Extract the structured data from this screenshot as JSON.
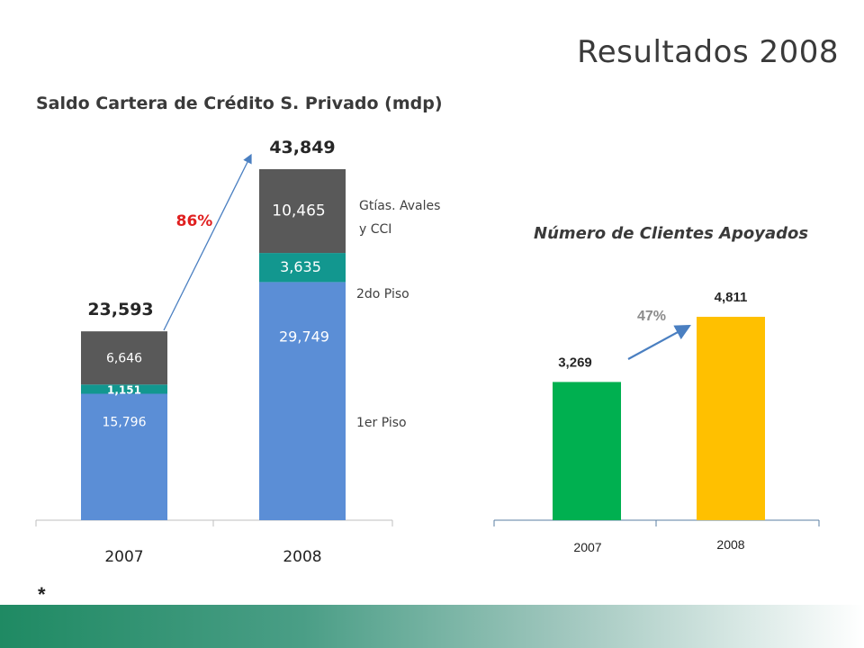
{
  "page": {
    "title": "Resultados 2008",
    "footnote": "*"
  },
  "colors": {
    "piso1": "#5b8ed6",
    "piso2": "#12978f",
    "avales": "#595959",
    "bar2007": "#00b050",
    "bar2008": "#ffc000",
    "growth_red": "#e02020",
    "arrow": "#4a7fc1"
  },
  "chart_data": [
    {
      "type": "bar",
      "stacked": true,
      "title": "Saldo Cartera de Crédito S. Privado (mdp)",
      "categories": [
        "2007",
        "2008"
      ],
      "series": [
        {
          "name": "1er Piso",
          "values": [
            15796,
            29749
          ],
          "labels": [
            "15,796",
            "29,749"
          ],
          "color": "#5b8ed6"
        },
        {
          "name": "2do Piso",
          "values": [
            1151,
            3635
          ],
          "labels": [
            "1,151",
            "3,635"
          ],
          "color": "#12978f"
        },
        {
          "name": "Gtías. Avales y CCI",
          "values": [
            6646,
            10465
          ],
          "labels": [
            "6,646",
            "10,465"
          ],
          "color": "#595959"
        }
      ],
      "series_label_lines": [
        [
          "1er Piso"
        ],
        [
          "2do Piso"
        ],
        [
          "Gtías. Avales",
          "y CCI"
        ]
      ],
      "totals": [
        23593,
        43849
      ],
      "total_labels": [
        "23,593",
        "43,849"
      ],
      "growth": "86%",
      "ylim": [
        0,
        43849
      ]
    },
    {
      "type": "bar",
      "title": "Número de Clientes Apoyados",
      "categories": [
        "2007",
        "2008"
      ],
      "values": [
        3269,
        4811
      ],
      "value_labels": [
        "3,269",
        "4,811"
      ],
      "colors": [
        "#00b050",
        "#ffc000"
      ],
      "growth": "47%",
      "ylim": [
        0,
        4811
      ]
    }
  ]
}
